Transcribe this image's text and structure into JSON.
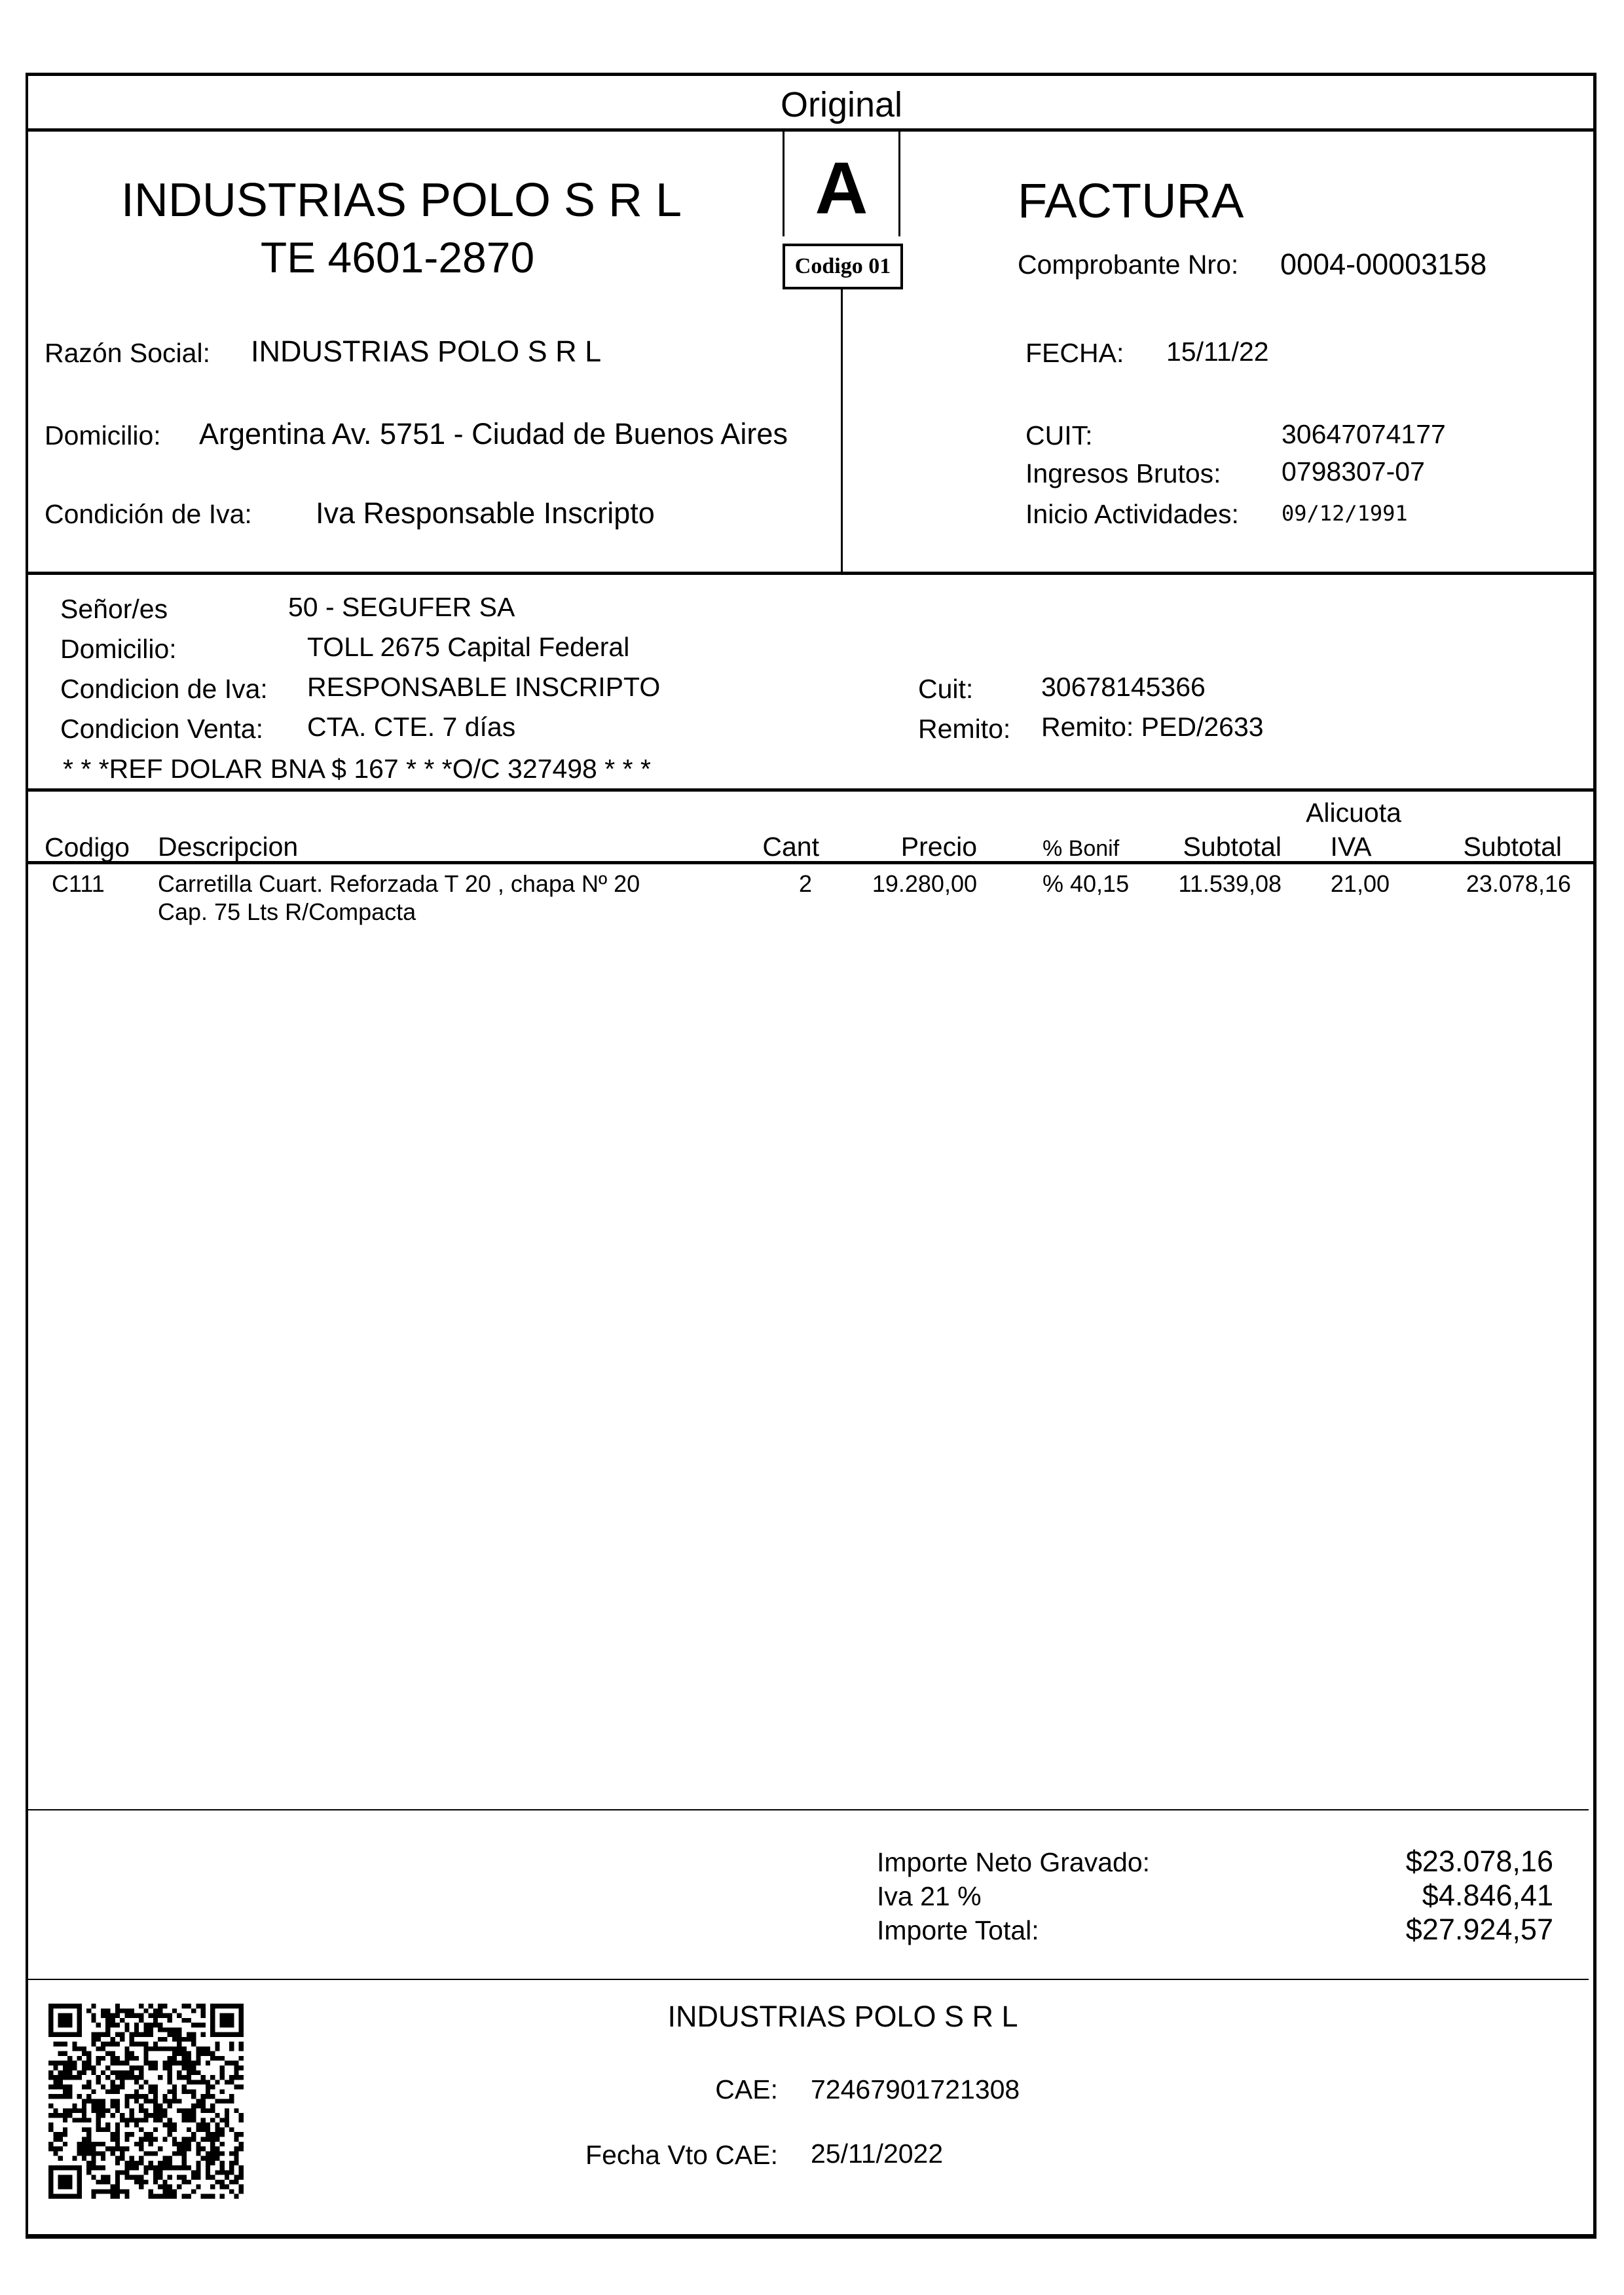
{
  "copy_label": "Original",
  "issuer": {
    "name": "INDUSTRIAS POLO S R L",
    "phone": "TE 4601-2870",
    "letter": "A",
    "code": "Codigo 01",
    "doc_type": "FACTURA",
    "comprobante_label": "Comprobante Nro:",
    "comprobante_value": "0004-00003158",
    "razon_social_label": "Razón Social:",
    "razon_social_value": "INDUSTRIAS POLO S R L",
    "domicilio_label": "Domicilio:",
    "domicilio_value": "Argentina Av. 5751 - Ciudad de Buenos Aires",
    "condicion_iva_label": "Condición de Iva:",
    "condicion_iva_value": "Iva Responsable Inscripto",
    "fecha_label": "FECHA:",
    "fecha_value": "15/11/22",
    "cuit_label": "CUIT:",
    "cuit_value": "30647074177",
    "iibb_label": "Ingresos Brutos:",
    "iibb_value": "0798307-07",
    "inicio_label": "Inicio Actividades:",
    "inicio_value": "09/12/1991"
  },
  "client": {
    "senores_label": "Señor/es",
    "senores_value": "50 - SEGUFER SA",
    "domicilio_label": "Domicilio:",
    "domicilio_value": "TOLL  2675  Capital Federal",
    "condicion_iva_label": "Condicion de Iva:",
    "condicion_iva_value": "RESPONSABLE INSCRIPTO",
    "condicion_venta_label": "Condicion Venta:",
    "condicion_venta_value": "CTA. CTE. 7 días",
    "cuit_label": "Cuit:",
    "cuit_value": "30678145366",
    "remito_label": "Remito:",
    "remito_value": "Remito: PED/2633",
    "reference": " * * *REF DOLAR BNA $ 167 * * *O/C 327498 * * *"
  },
  "table": {
    "headers": {
      "codigo": "Codigo",
      "descripcion": "Descripcion",
      "cant": "Cant",
      "precio": "Precio",
      "bonif": "% Bonif",
      "subtotal": "Subtotal",
      "alicuota_top": "Alicuota",
      "alicuota_bottom": "IVA",
      "subtotal_total": "Subtotal"
    },
    "rows": [
      {
        "codigo": "C111",
        "descripcion_1": "Carretilla Cuart. Reforzada T 20 , chapa Nº 20",
        "descripcion_2": "Cap.  75 Lts R/Compacta",
        "cant": "2",
        "precio": "19.280,00",
        "bonif": "% 40,15",
        "subtotal": "11.539,08",
        "alicuota": "21,00",
        "subtotal_total": "23.078,16"
      }
    ]
  },
  "totals": {
    "neto_label": "Importe Neto Gravado:",
    "neto_value": "$23.078,16",
    "iva_label": "Iva 21 %",
    "iva_value": "$4.846,41",
    "total_label": "Importe Total:",
    "total_value": "$27.924,57"
  },
  "footer": {
    "company": "INDUSTRIAS POLO S R L",
    "cae_label": "CAE:",
    "cae_value": "72467901721308",
    "vto_label": "Fecha Vto CAE:",
    "vto_value": "25/11/2022",
    "qr_icon": "qr-code"
  }
}
